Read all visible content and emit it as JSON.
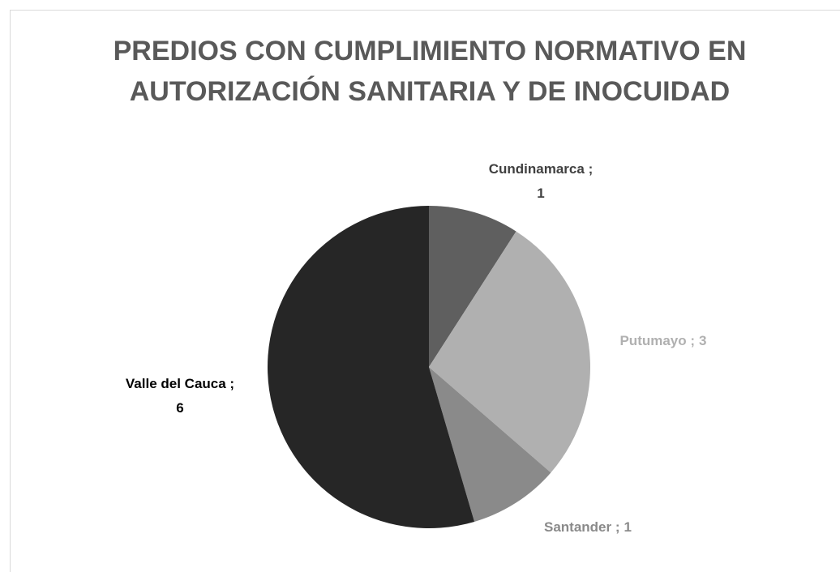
{
  "chart_data": {
    "type": "pie",
    "title": "PREDIOS CON CUMPLIMIENTO NORMATIVO EN AUTORIZACIÓN SANITARIA Y DE INOCUIDAD",
    "categories": [
      "Cundinamarca",
      "Putumayo",
      "Santander",
      "Valle del Cauca"
    ],
    "values": [
      1,
      3,
      1,
      6
    ],
    "colors": [
      "#5f5f5f",
      "#b0b0b0",
      "#8a8a8a",
      "#262626"
    ],
    "label_colors": [
      "#404040",
      "#b0b0b0",
      "#8a8a8a",
      "#000000"
    ],
    "label_separator": " ;"
  }
}
